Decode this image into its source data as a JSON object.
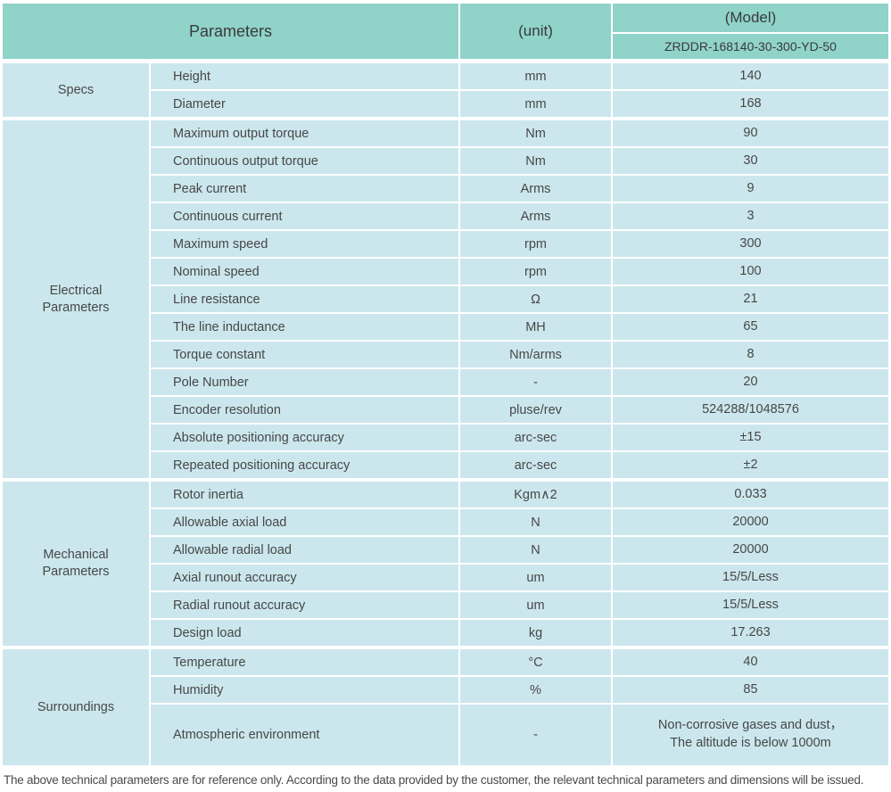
{
  "colors": {
    "header_bg": "#8fd3c9",
    "cell_bg": "#cbe7ed",
    "divider": "#ffffff",
    "text": "#474747"
  },
  "header": {
    "parameters_label": "Parameters",
    "unit_label": "(unit)",
    "model_label": "(Model)",
    "model_value": "ZRDDR-168140-30-300-YD-50"
  },
  "sections": [
    {
      "group": "Specs",
      "rows": [
        {
          "name": "Height",
          "unit": "mm",
          "value": "140"
        },
        {
          "name": "Diameter",
          "unit": "mm",
          "value": "168"
        }
      ]
    },
    {
      "group": "Electrical\nParameters",
      "rows": [
        {
          "name": "Maximum output torque",
          "unit": "Nm",
          "value": "90"
        },
        {
          "name": "Continuous output torque",
          "unit": "Nm",
          "value": "30"
        },
        {
          "name": "Peak current",
          "unit": "Arms",
          "value": "9"
        },
        {
          "name": "Continuous current",
          "unit": "Arms",
          "value": "3"
        },
        {
          "name": "Maximum speed",
          "unit": "rpm",
          "value": "300"
        },
        {
          "name": "Nominal speed",
          "unit": "rpm",
          "value": "100"
        },
        {
          "name": "Line resistance",
          "unit": "Ω",
          "value": "21"
        },
        {
          "name": "The line inductance",
          "unit": "MH",
          "value": "65"
        },
        {
          "name": "Torque constant",
          "unit": "Nm/arms",
          "value": "8"
        },
        {
          "name": "Pole Number",
          "unit": "-",
          "value": "20"
        },
        {
          "name": "Encoder resolution",
          "unit": "pluse/rev",
          "value": "524288/1048576"
        },
        {
          "name": "Absolute positioning accuracy",
          "unit": "arc-sec",
          "value": "±15"
        },
        {
          "name": "Repeated positioning accuracy",
          "unit": "arc-sec",
          "value": "±2"
        }
      ]
    },
    {
      "group": "Mechanical\nParameters",
      "rows": [
        {
          "name": "Rotor inertia",
          "unit": "Kgm∧2",
          "value": "0.033"
        },
        {
          "name": "Allowable axial load",
          "unit": "N",
          "value": "20000"
        },
        {
          "name": "Allowable radial load",
          "unit": "N",
          "value": "20000"
        },
        {
          "name": "Axial runout accuracy",
          "unit": "um",
          "value": "15/5/Less"
        },
        {
          "name": "Radial runout accuracy",
          "unit": "um",
          "value": "15/5/Less"
        },
        {
          "name": "Design load",
          "unit": "kg",
          "value": "17.263"
        }
      ]
    },
    {
      "group": "Surroundings",
      "rows": [
        {
          "name": "Temperature",
          "unit": "°C",
          "value": "40"
        },
        {
          "name": "Humidity",
          "unit": "%",
          "value": "85"
        },
        {
          "name": "Atmospheric environment",
          "unit": "-",
          "value": "Non-corrosive gases and dust，\nThe altitude is below 1000m"
        }
      ]
    }
  ],
  "footer": {
    "note": "The above technical parameters are for reference only. According to the data provided by the customer, the relevant technical parameters and dimensions will be issued."
  }
}
